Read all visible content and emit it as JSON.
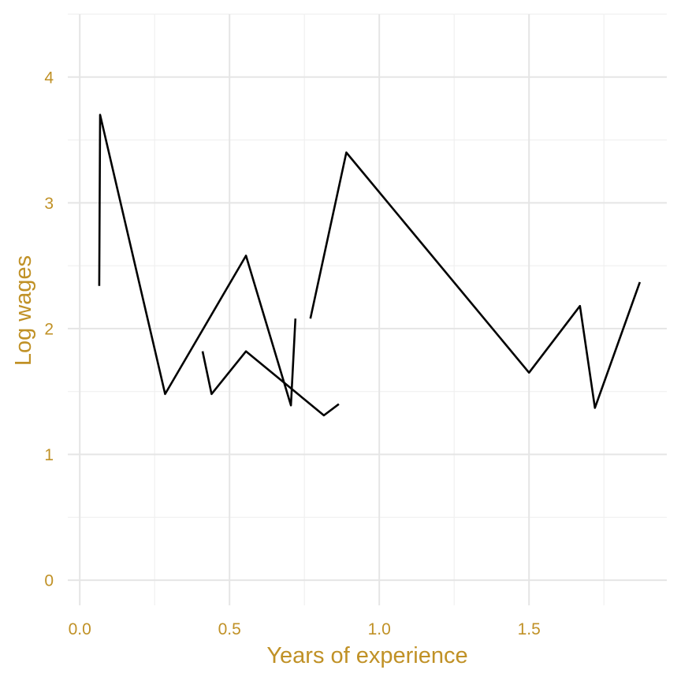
{
  "chart_data": {
    "type": "line",
    "xlabel": "Years of experience",
    "ylabel": "Log wages",
    "xlim": [
      -0.04,
      1.96
    ],
    "ylim": [
      -0.2,
      4.5
    ],
    "x_ticks": [
      0.0,
      0.5,
      1.0,
      1.5
    ],
    "x_tick_labels": [
      "0.0",
      "0.5",
      "1.0",
      "1.5"
    ],
    "y_ticks": [
      0,
      1,
      2,
      3,
      4
    ],
    "y_tick_labels": [
      "0",
      "1",
      "2",
      "3",
      "4"
    ],
    "grid": true,
    "legend": "none",
    "series": [
      {
        "points": [
          [
            0.065,
            2.34
          ],
          [
            0.068,
            3.7
          ],
          [
            0.285,
            1.48
          ],
          [
            0.555,
            2.58
          ],
          [
            0.705,
            1.39
          ],
          [
            0.72,
            2.08
          ]
        ]
      },
      {
        "points": [
          [
            0.41,
            1.82
          ],
          [
            0.44,
            1.48
          ],
          [
            0.555,
            1.82
          ],
          [
            0.815,
            1.31
          ],
          [
            0.865,
            1.4
          ]
        ]
      },
      {
        "points": [
          [
            0.77,
            2.08
          ],
          [
            0.89,
            3.4
          ],
          [
            1.5,
            1.65
          ],
          [
            1.67,
            2.18
          ],
          [
            1.72,
            1.37
          ],
          [
            1.87,
            2.37
          ]
        ]
      }
    ]
  },
  "colors": {
    "text": "#c09126",
    "line": "#000000",
    "grid": "#e5e5e5"
  }
}
